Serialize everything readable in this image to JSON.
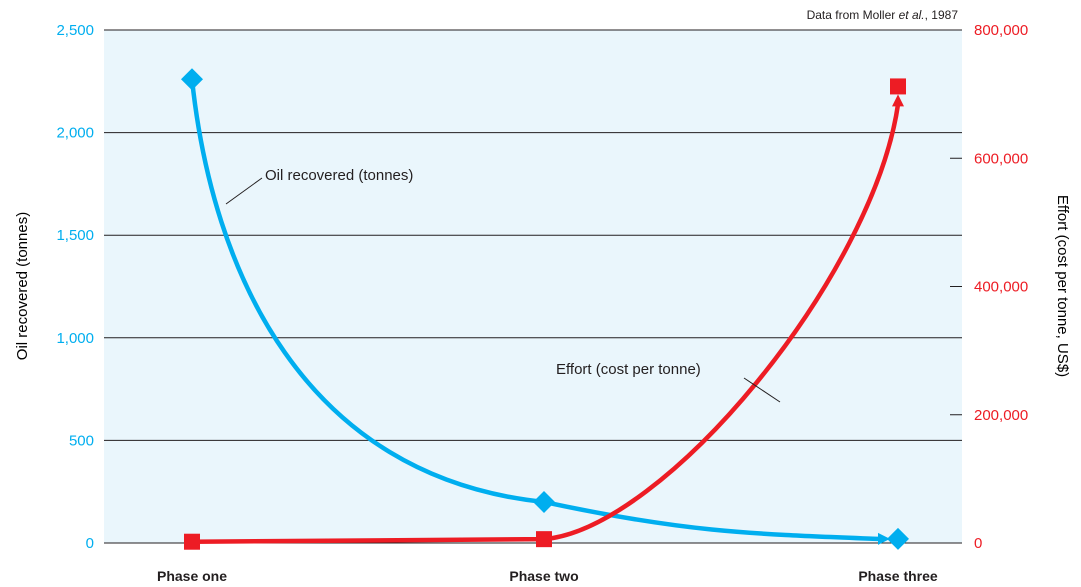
{
  "colors": {
    "left_series": "#00aeef",
    "right_series": "#ed1c24",
    "plot_bg": "#eaf6fc",
    "grid": "#231f20",
    "text": "#231f20"
  },
  "source": {
    "prefix": "Data from Moller ",
    "italic": "et al.",
    "suffix": ", 1987"
  },
  "chart_data": {
    "type": "line",
    "categories": [
      "Phase one",
      "Phase two",
      "Phase three"
    ],
    "y_left": {
      "label": "Oil recovered (tonnes)",
      "range": [
        0,
        2500
      ],
      "ticks": [
        0,
        500,
        1000,
        1500,
        2000,
        2500
      ],
      "tick_labels": [
        "0",
        "500",
        "1,000",
        "1,500",
        "2,000",
        "2,500"
      ]
    },
    "y_right": {
      "label": "Effort (cost per tonne, US$)",
      "range": [
        0,
        800000
      ],
      "ticks": [
        0,
        200000,
        400000,
        600000,
        800000
      ],
      "tick_labels": [
        "0",
        "200,000",
        "400,000",
        "600,000",
        "800,000"
      ]
    },
    "series": [
      {
        "name": "Oil recovered (tonnes)",
        "axis": "left",
        "marker": "diamond",
        "values": [
          2260,
          200,
          20
        ]
      },
      {
        "name": "Effort (cost per tonne)",
        "axis": "right",
        "marker": "square",
        "values": [
          2000,
          6000,
          712000
        ]
      }
    ],
    "grid": true,
    "legend": "inline annotations"
  }
}
